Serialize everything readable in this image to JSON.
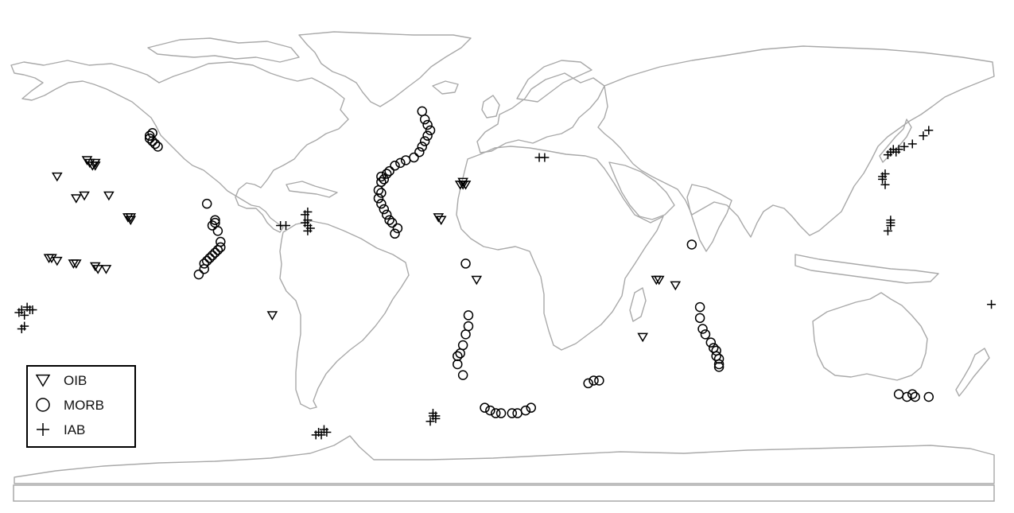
{
  "map": {
    "projection": "equirectangular",
    "legend_placement": "bottom-left",
    "land_outline_color": "#a9a9a9",
    "marker_color": "#000000"
  },
  "legend": [
    {
      "key": "oib",
      "label": "OIB",
      "symbol": "triangle-down"
    },
    {
      "key": "morb",
      "label": "MORB",
      "symbol": "circle"
    },
    {
      "key": "iab",
      "label": "IAB",
      "symbol": "plus"
    }
  ],
  "samples": {
    "oib": [
      [
        -164,
        31
      ],
      [
        -153,
        37
      ],
      [
        -152,
        36
      ],
      [
        -151,
        35
      ],
      [
        -150,
        35
      ],
      [
        -150,
        36
      ],
      [
        -157,
        23
      ],
      [
        -154,
        24
      ],
      [
        -145,
        24
      ],
      [
        -138,
        16
      ],
      [
        -137,
        15
      ],
      [
        -137,
        16
      ],
      [
        -158,
        -1
      ],
      [
        -157,
        -1
      ],
      [
        -167,
        1
      ],
      [
        -166,
        1
      ],
      [
        -164,
        0
      ],
      [
        -150,
        -2
      ],
      [
        -149,
        -3
      ],
      [
        -146,
        -3
      ],
      [
        -85,
        -20
      ],
      [
        -16,
        28
      ],
      [
        -15,
        28
      ],
      [
        -14,
        28
      ],
      [
        -15,
        29
      ],
      [
        -24,
        16
      ],
      [
        -23,
        15
      ],
      [
        -10,
        -7
      ],
      [
        56,
        -7
      ],
      [
        57,
        -7
      ],
      [
        63,
        -9
      ],
      [
        51,
        -28
      ]
    ],
    "morb": [
      [
        -130,
        45
      ],
      [
        -130,
        46
      ],
      [
        -129,
        44
      ],
      [
        -128,
        43
      ],
      [
        -127,
        42
      ],
      [
        -129,
        47
      ],
      [
        -109,
        21
      ],
      [
        -106,
        15
      ],
      [
        -106,
        14
      ],
      [
        -107,
        13
      ],
      [
        -105,
        11
      ],
      [
        -104,
        7
      ],
      [
        -112,
        -5
      ],
      [
        -110,
        -3
      ],
      [
        -110,
        -1
      ],
      [
        -109,
        0
      ],
      [
        -108,
        1
      ],
      [
        -107,
        2
      ],
      [
        -106,
        3
      ],
      [
        -105,
        4
      ],
      [
        -104,
        5
      ],
      [
        -45,
        31
      ],
      [
        -44,
        30
      ],
      [
        -43,
        32
      ],
      [
        -42,
        33
      ],
      [
        -40,
        35
      ],
      [
        -38,
        36
      ],
      [
        -36,
        37
      ],
      [
        -33,
        38
      ],
      [
        -31,
        40
      ],
      [
        -30,
        42
      ],
      [
        -29,
        44
      ],
      [
        -28,
        46
      ],
      [
        -27,
        48
      ],
      [
        -28,
        50
      ],
      [
        -29,
        52
      ],
      [
        -30,
        55
      ],
      [
        -45,
        29
      ],
      [
        -46,
        26
      ],
      [
        -45,
        25
      ],
      [
        -46,
        23
      ],
      [
        -45,
        21
      ],
      [
        -44,
        19
      ],
      [
        -43,
        17
      ],
      [
        -42,
        15
      ],
      [
        -41,
        14
      ],
      [
        -39,
        12
      ],
      [
        -40,
        10
      ],
      [
        -14,
        -1
      ],
      [
        -13,
        -20
      ],
      [
        -13,
        -24
      ],
      [
        -14,
        -27
      ],
      [
        -15,
        -31
      ],
      [
        -16,
        -34
      ],
      [
        -17,
        -35
      ],
      [
        -17,
        -38
      ],
      [
        -15,
        -42
      ],
      [
        -7,
        -54
      ],
      [
        -5,
        -55
      ],
      [
        -3,
        -56
      ],
      [
        -1,
        -56
      ],
      [
        3,
        -56
      ],
      [
        5,
        -56
      ],
      [
        8,
        -55
      ],
      [
        10,
        -54
      ],
      [
        31,
        -45
      ],
      [
        33,
        -44
      ],
      [
        35,
        -44
      ],
      [
        69,
        6
      ],
      [
        72,
        -17
      ],
      [
        72,
        -21
      ],
      [
        73,
        -25
      ],
      [
        74,
        -27
      ],
      [
        76,
        -30
      ],
      [
        77,
        -32
      ],
      [
        78,
        -33
      ],
      [
        78,
        -35
      ],
      [
        79,
        -36
      ],
      [
        79,
        -38
      ],
      [
        79,
        -39
      ],
      [
        145,
        -49
      ],
      [
        148,
        -50
      ],
      [
        150,
        -49
      ],
      [
        151,
        -50
      ],
      [
        156,
        -50
      ]
    ],
    "iab": [
      [
        -178,
        -19
      ],
      [
        -177,
        -18
      ],
      [
        -175,
        -17
      ],
      [
        -174,
        -18
      ],
      [
        -176,
        -20
      ],
      [
        -173,
        -18
      ],
      [
        -177,
        -25
      ],
      [
        -176,
        -24
      ],
      [
        -72,
        18
      ],
      [
        -73,
        17
      ],
      [
        -72,
        15
      ],
      [
        -73,
        14
      ],
      [
        -72,
        13
      ],
      [
        -71,
        12
      ],
      [
        -72,
        11
      ],
      [
        -82,
        13
      ],
      [
        -80,
        13
      ],
      [
        -26,
        -56
      ],
      [
        -25,
        -58
      ],
      [
        -26,
        -57
      ],
      [
        -27,
        -59
      ],
      [
        -25,
        -57
      ],
      [
        -69,
        -64
      ],
      [
        -68,
        -63
      ],
      [
        -66,
        -62
      ],
      [
        -65,
        -63
      ],
      [
        -67,
        -64
      ],
      [
        13,
        38
      ],
      [
        15,
        38
      ],
      [
        141,
        39
      ],
      [
        142,
        40
      ],
      [
        143,
        41
      ],
      [
        144,
        40
      ],
      [
        145,
        41
      ],
      [
        147,
        42
      ],
      [
        150,
        43
      ],
      [
        154,
        46
      ],
      [
        156,
        48
      ],
      [
        139,
        30
      ],
      [
        139,
        31
      ],
      [
        140,
        32
      ],
      [
        140,
        28
      ],
      [
        142,
        15
      ],
      [
        142,
        14
      ],
      [
        142,
        13
      ],
      [
        141,
        11
      ],
      [
        179,
        -16
      ]
    ]
  }
}
